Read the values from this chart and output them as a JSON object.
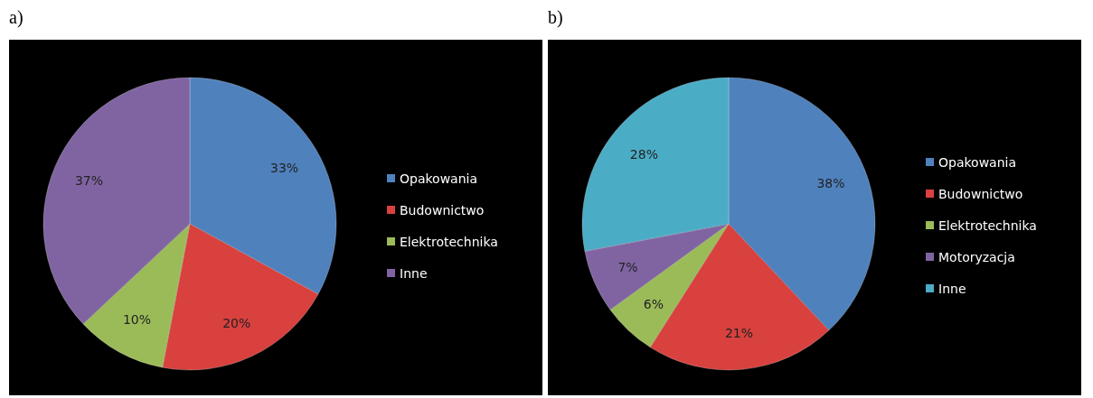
{
  "chart_data": [
    {
      "type": "pie",
      "title": "a)",
      "categories": [
        "Opakowania",
        "Budownictwo",
        "Elektrotechnika",
        "Inne"
      ],
      "values": [
        33,
        20,
        10,
        37
      ],
      "colors": [
        "#4f81bd",
        "#d8413e",
        "#9bbb59",
        "#8064a2"
      ],
      "value_labels": [
        "33%",
        "20%",
        "10%",
        "37%"
      ],
      "legend": "right"
    },
    {
      "type": "pie",
      "title": "b)",
      "categories": [
        "Opakowania",
        "Budownictwo",
        "Elektrotechnika",
        "Motoryzacja",
        "Inne"
      ],
      "values": [
        38,
        21,
        6,
        7,
        28
      ],
      "colors": [
        "#4f81bd",
        "#d8413e",
        "#9bbb59",
        "#8064a2",
        "#4bacc6"
      ],
      "value_labels": [
        "38%",
        "21%",
        "6%",
        "7%",
        "28%"
      ],
      "legend": "right"
    }
  ]
}
